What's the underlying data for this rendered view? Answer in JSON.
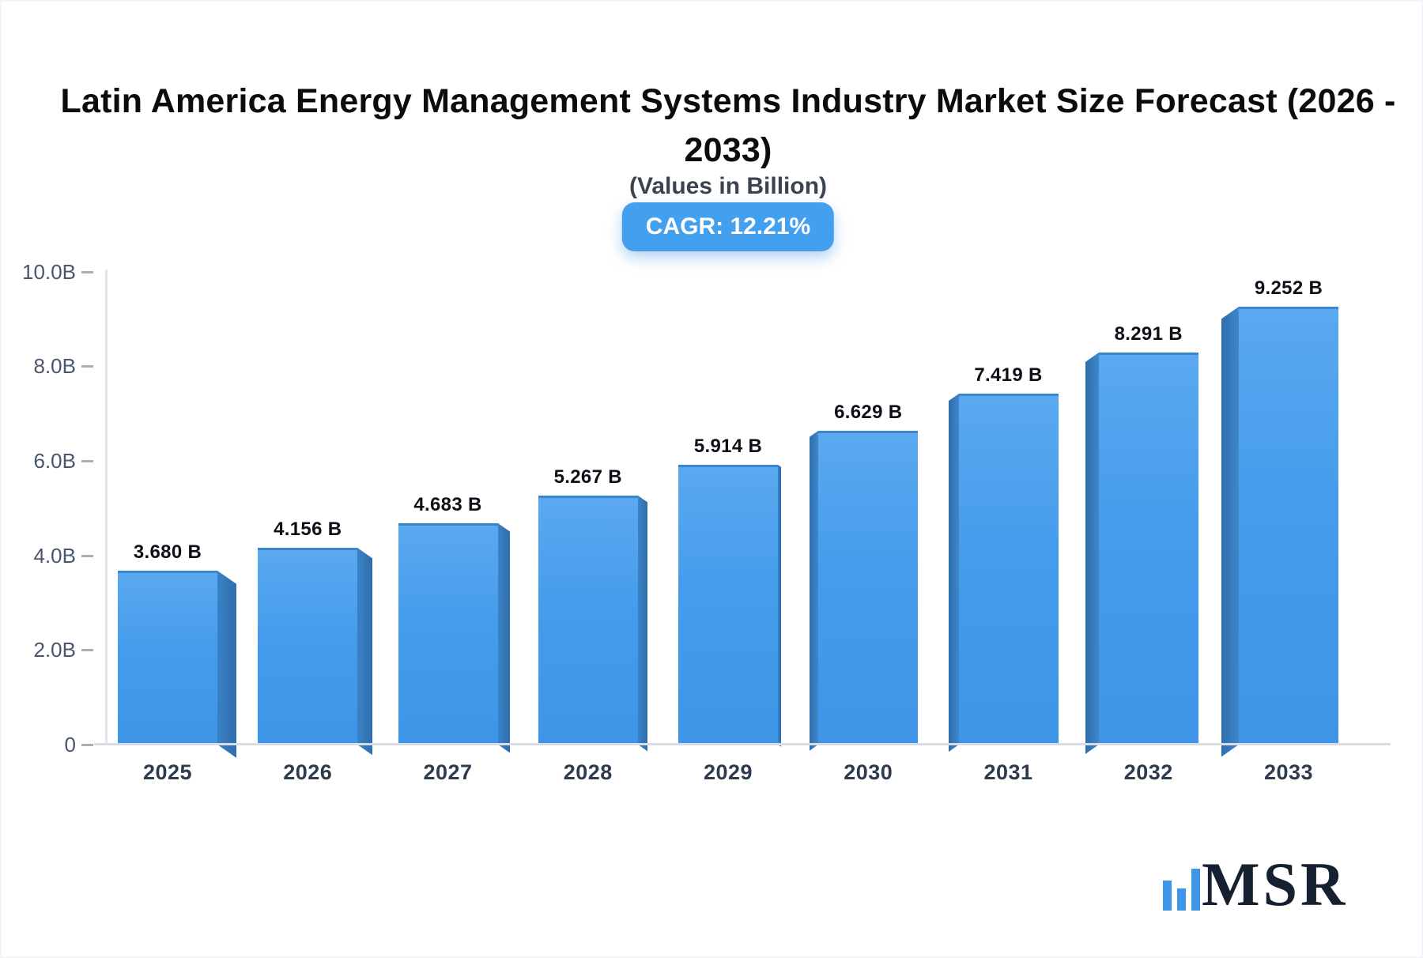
{
  "header": {
    "title": "Latin America Energy Management Systems Industry Market Size Forecast (2026 - 2033)",
    "title_lines": [
      "Latin America Energy Management Systems Industry Market Size Forecast (2026 -",
      "2033)"
    ],
    "subtitle": "(Values in Billion)",
    "cagr_badge": "CAGR: 12.21%"
  },
  "chart_data": {
    "type": "bar",
    "title": "Latin America Energy Management Systems Industry Market Size Forecast (2026 - 2033)",
    "subtitle": "(Values in Billion)",
    "cagr_percent": 12.21,
    "categories": [
      "2025",
      "2026",
      "2027",
      "2028",
      "2029",
      "2030",
      "2031",
      "2032",
      "2033"
    ],
    "values": [
      3.68,
      4.156,
      4.683,
      5.267,
      5.914,
      6.629,
      7.419,
      8.291,
      9.252
    ],
    "bar_labels": [
      "3.680 B",
      "4.156 B",
      "4.683 B",
      "5.267 B",
      "5.914 B",
      "6.629 B",
      "7.419 B",
      "8.291 B",
      "9.252 B"
    ],
    "xlabel": "",
    "ylabel": "",
    "ylim": [
      0,
      10
    ],
    "yticks": [
      {
        "value": 0,
        "label": "0"
      },
      {
        "value": 2,
        "label": "2.0B"
      },
      {
        "value": 4,
        "label": "4.0B"
      },
      {
        "value": 6,
        "label": "6.0B"
      },
      {
        "value": 8,
        "label": "8.0B"
      },
      {
        "value": 10,
        "label": "10.0B"
      }
    ],
    "grid": false,
    "legend": false,
    "style": "3d-bars",
    "colors": {
      "bar_face": "#3e96e8",
      "bar_side": "#2d6dad",
      "badge": "#42a0ef",
      "axis": "#d9dde3",
      "tick_text": "#49566b",
      "category_text": "#2e3a4d"
    }
  },
  "logo": {
    "text": "MSR",
    "icon": "three-ascending-bars",
    "color": "#3d97e8"
  }
}
